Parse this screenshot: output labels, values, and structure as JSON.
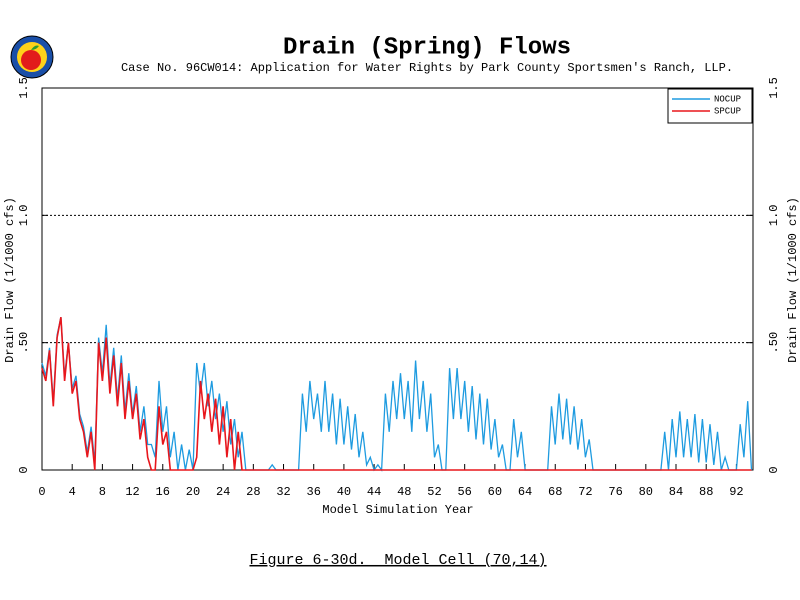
{
  "chart_data": {
    "type": "line",
    "title": "Drain (Spring) Flows",
    "subtitle": "Case No. 96CW014: Application for Water Rights by Park County Sportsmen's Ranch, LLP.",
    "xlabel": "Model Simulation Year",
    "ylabel": "Drain Flow (1/1000 cfs)",
    "caption": "Figure 6-30d.  Model Cell (70,14)",
    "xlim": [
      0,
      94.2
    ],
    "xticks": [
      0,
      4,
      8,
      12,
      16,
      20,
      24,
      28,
      32,
      36,
      40,
      44,
      48,
      52,
      56,
      60,
      64,
      68,
      72,
      76,
      80,
      84,
      88,
      92
    ],
    "ylim": [
      0,
      1.5
    ],
    "yticks": [
      0,
      {
        "value": 0.5,
        "label": ".50"
      },
      {
        "value": 1.0,
        "label": "1.0"
      },
      {
        "value": 1.5,
        "label": "1.5"
      }
    ],
    "grid": true,
    "legend": "upper right",
    "x": [
      0,
      0.5,
      1,
      1.5,
      2,
      2.5,
      3,
      3.5,
      4,
      4.5,
      5,
      5.5,
      6,
      6.5,
      7,
      7.5,
      8,
      8.5,
      9,
      9.5,
      10,
      10.5,
      11,
      11.5,
      12,
      12.5,
      13,
      13.5,
      14,
      14.5,
      15,
      15.5,
      16,
      16.5,
      17,
      17.5,
      18,
      18.5,
      19,
      19.5,
      20,
      20.5,
      21,
      21.5,
      22,
      22.5,
      23,
      23.5,
      24,
      24.5,
      25,
      25.5,
      26,
      26.5,
      27,
      27.5,
      28,
      28.5,
      29,
      29.5,
      30,
      30.5,
      31,
      31.5,
      32,
      32.5,
      33,
      33.5,
      34,
      34.5,
      35,
      35.5,
      36,
      36.5,
      37,
      37.5,
      38,
      38.5,
      39,
      39.5,
      40,
      40.5,
      41,
      41.5,
      42,
      42.5,
      43,
      43.5,
      44,
      44.5,
      45,
      45.5,
      46,
      46.5,
      47,
      47.5,
      48,
      48.5,
      49,
      49.5,
      50,
      50.5,
      51,
      51.5,
      52,
      52.5,
      53,
      53.5,
      54,
      54.5,
      55,
      55.5,
      56,
      56.5,
      57,
      57.5,
      58,
      58.5,
      59,
      59.5,
      60,
      60.5,
      61,
      61.5,
      62,
      62.5,
      63,
      63.5,
      64,
      64.5,
      65,
      65.5,
      66,
      66.5,
      67,
      67.5,
      68,
      68.5,
      69,
      69.5,
      70,
      70.5,
      71,
      71.5,
      72,
      72.5,
      73,
      73.5,
      74,
      74.5,
      75,
      75.5,
      76,
      76.5,
      77,
      77.5,
      78,
      78.5,
      79,
      79.5,
      80,
      80.5,
      81,
      81.5,
      82,
      82.5,
      83,
      83.5,
      84,
      84.5,
      85,
      85.5,
      86,
      86.5,
      87,
      87.5,
      88,
      88.5,
      89,
      89.5,
      90,
      90.5,
      91,
      91.5,
      92,
      92.5,
      93,
      93.5,
      94
    ],
    "series": [
      {
        "name": "NOCUP",
        "color": "#1e9be0",
        "values": [
          0.42,
          0.37,
          0.48,
          0.27,
          0.53,
          0.6,
          0.37,
          0.5,
          0.32,
          0.37,
          0.22,
          0.17,
          0.07,
          0.17,
          0.03,
          0.52,
          0.38,
          0.57,
          0.33,
          0.48,
          0.28,
          0.45,
          0.23,
          0.38,
          0.22,
          0.33,
          0.15,
          0.25,
          0.1,
          0.1,
          0.05,
          0.35,
          0.15,
          0.25,
          0.05,
          0.15,
          0,
          0.1,
          0,
          0.08,
          0,
          0.42,
          0.3,
          0.42,
          0.25,
          0.35,
          0.2,
          0.3,
          0.15,
          0.27,
          0.1,
          0.2,
          0.05,
          0.15,
          0,
          0,
          0,
          0,
          0,
          0,
          0,
          0.02,
          0,
          0,
          0,
          0,
          0,
          0,
          0,
          0.3,
          0.15,
          0.35,
          0.2,
          0.3,
          0.15,
          0.35,
          0.15,
          0.3,
          0.1,
          0.28,
          0.1,
          0.25,
          0.08,
          0.22,
          0.05,
          0.15,
          0.02,
          0.05,
          0,
          0.02,
          0,
          0.3,
          0.15,
          0.35,
          0.2,
          0.38,
          0.2,
          0.35,
          0.15,
          0.43,
          0.2,
          0.35,
          0.15,
          0.3,
          0.05,
          0.1,
          0,
          0,
          0.4,
          0.2,
          0.4,
          0.2,
          0.35,
          0.15,
          0.33,
          0.12,
          0.3,
          0.1,
          0.28,
          0.08,
          0.2,
          0.05,
          0.1,
          0,
          0,
          0.2,
          0.05,
          0.15,
          0,
          0,
          0,
          0,
          0,
          0,
          0,
          0.25,
          0.1,
          0.3,
          0.12,
          0.28,
          0.1,
          0.25,
          0.08,
          0.2,
          0.05,
          0.12,
          0,
          0,
          0,
          0,
          0,
          0,
          0,
          0,
          0,
          0,
          0,
          0,
          0,
          0,
          0,
          0,
          0,
          0,
          0,
          0.15,
          0,
          0.2,
          0.05,
          0.23,
          0.05,
          0.2,
          0.05,
          0.22,
          0.03,
          0.2,
          0.03,
          0.18,
          0.02,
          0.15,
          0,
          0.05,
          0,
          0,
          0,
          0.18,
          0.05,
          0.27,
          0
        ]
      },
      {
        "name": "SPCUP",
        "color": "#e8161c",
        "values": [
          0.4,
          0.35,
          0.47,
          0.25,
          0.52,
          0.6,
          0.35,
          0.5,
          0.3,
          0.35,
          0.2,
          0.15,
          0.05,
          0.15,
          0,
          0.5,
          0.35,
          0.52,
          0.3,
          0.45,
          0.25,
          0.42,
          0.2,
          0.35,
          0.2,
          0.3,
          0.12,
          0.2,
          0.05,
          0,
          0,
          0.25,
          0.1,
          0.15,
          0,
          0,
          0,
          0,
          0,
          0,
          0,
          0.05,
          0.35,
          0.2,
          0.3,
          0.15,
          0.28,
          0.1,
          0.25,
          0.05,
          0.2,
          0,
          0.15,
          0,
          0,
          0,
          0,
          0,
          0,
          0,
          0,
          0,
          0,
          0,
          0,
          0,
          0,
          0,
          0,
          0,
          0,
          0,
          0,
          0,
          0,
          0,
          0,
          0,
          0,
          0,
          0,
          0,
          0,
          0,
          0,
          0,
          0,
          0,
          0,
          0,
          0,
          0,
          0,
          0,
          0,
          0,
          0,
          0,
          0,
          0,
          0,
          0,
          0,
          0,
          0,
          0,
          0,
          0,
          0,
          0,
          0,
          0,
          0,
          0,
          0,
          0,
          0,
          0,
          0,
          0,
          0,
          0,
          0,
          0,
          0,
          0,
          0,
          0,
          0,
          0,
          0,
          0,
          0,
          0,
          0,
          0,
          0,
          0,
          0,
          0,
          0,
          0,
          0,
          0,
          0,
          0,
          0,
          0,
          0,
          0,
          0,
          0,
          0,
          0,
          0,
          0,
          0,
          0,
          0,
          0,
          0,
          0,
          0,
          0,
          0,
          0,
          0,
          0,
          0,
          0,
          0,
          0,
          0,
          0,
          0,
          0,
          0,
          0,
          0,
          0,
          0,
          0,
          0,
          0,
          0,
          0,
          0,
          0,
          0
        ]
      }
    ]
  }
}
